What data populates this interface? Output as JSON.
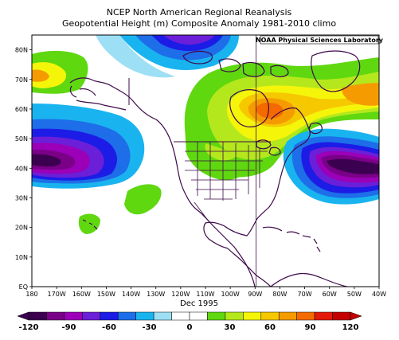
{
  "title_line1": "NCEP North American Regional Reanalysis",
  "title_line2": "Geopotential Height (m) Composite Anomaly 1981-2010 climo",
  "credit": "NOAA Physical Sciences Laboratory",
  "date_label": "Dec 1995",
  "map": {
    "lon_range": [
      -180,
      -40
    ],
    "lat_range": [
      0,
      85
    ],
    "lat_labels": [
      {
        "lat": 80,
        "text": "80N"
      },
      {
        "lat": 70,
        "text": "70N"
      },
      {
        "lat": 60,
        "text": "60N"
      },
      {
        "lat": 50,
        "text": "50N"
      },
      {
        "lat": 40,
        "text": "40N"
      },
      {
        "lat": 30,
        "text": "30N"
      },
      {
        "lat": 20,
        "text": "20N"
      },
      {
        "lat": 10,
        "text": "10N"
      },
      {
        "lat": 0,
        "text": "EQ"
      }
    ],
    "lon_labels": [
      {
        "lon": -180,
        "text": "180"
      },
      {
        "lon": -170,
        "text": "170W"
      },
      {
        "lon": -160,
        "text": "160W"
      },
      {
        "lon": -150,
        "text": "150W"
      },
      {
        "lon": -140,
        "text": "140W"
      },
      {
        "lon": -130,
        "text": "130W"
      },
      {
        "lon": -120,
        "text": "120W"
      },
      {
        "lon": -110,
        "text": "110W"
      },
      {
        "lon": -100,
        "text": "100W"
      },
      {
        "lon": -90,
        "text": "90W"
      },
      {
        "lon": -80,
        "text": "80W"
      },
      {
        "lon": -70,
        "text": "70W"
      },
      {
        "lon": -60,
        "text": "60W"
      },
      {
        "lon": -50,
        "text": "50W"
      },
      {
        "lon": -40,
        "text": "40W"
      }
    ],
    "coast_color": "#3d0a4a"
  },
  "colorbar": {
    "colors": [
      "#3b004f",
      "#7a0087",
      "#9b00b8",
      "#6b1fd8",
      "#1c1ce6",
      "#1d6ee8",
      "#19b4f0",
      "#9ddff5",
      "#ffffff",
      "#ffffff",
      "#5fd80f",
      "#b5e81c",
      "#f5f50a",
      "#f5c800",
      "#f59b00",
      "#f56a00",
      "#e31a0a",
      "#c40000"
    ],
    "ticks": [
      "-120",
      "-90",
      "-60",
      "-30",
      "0",
      "30",
      "60",
      "90",
      "120"
    ]
  }
}
